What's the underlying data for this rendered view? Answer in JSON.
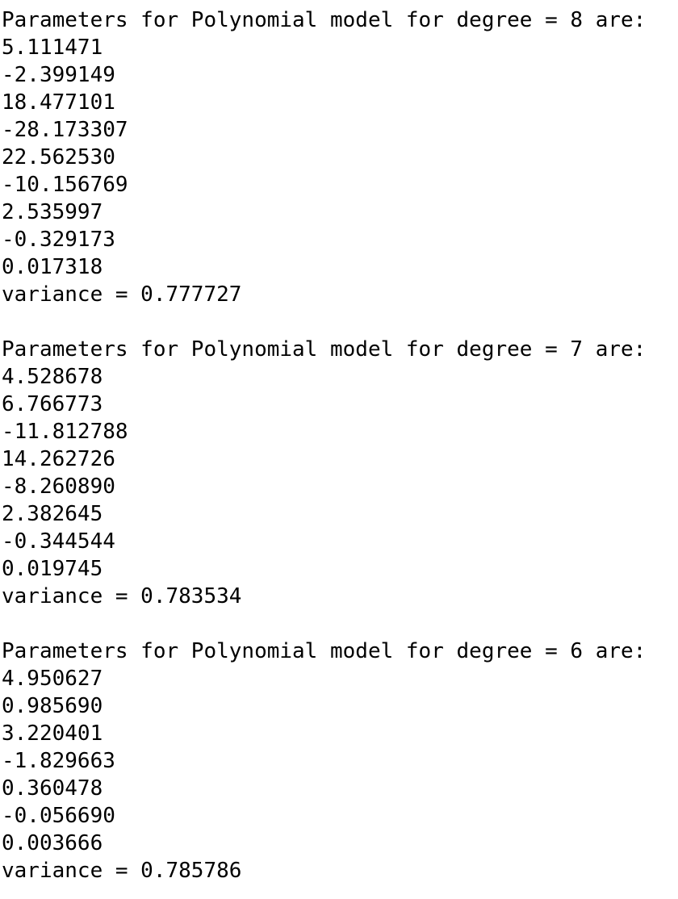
{
  "blocks": [
    {
      "header": "Parameters for Polynomial model for degree = 8 are:",
      "params": [
        "5.111471",
        "-2.399149",
        "18.477101",
        "-28.173307",
        "22.562530",
        "-10.156769",
        "2.535997",
        "-0.329173",
        "0.017318"
      ],
      "variance": "variance = 0.777727"
    },
    {
      "header": "Parameters for Polynomial model for degree = 7 are:",
      "params": [
        "4.528678",
        "6.766773",
        "-11.812788",
        "14.262726",
        "-8.260890",
        "2.382645",
        "-0.344544",
        "0.019745"
      ],
      "variance": "variance = 0.783534"
    },
    {
      "header": "Parameters for Polynomial model for degree = 6 are:",
      "params": [
        "4.950627",
        "0.985690",
        "3.220401",
        "-1.829663",
        "0.360478",
        "-0.056690",
        "0.003666"
      ],
      "variance": "variance = 0.785786"
    }
  ]
}
